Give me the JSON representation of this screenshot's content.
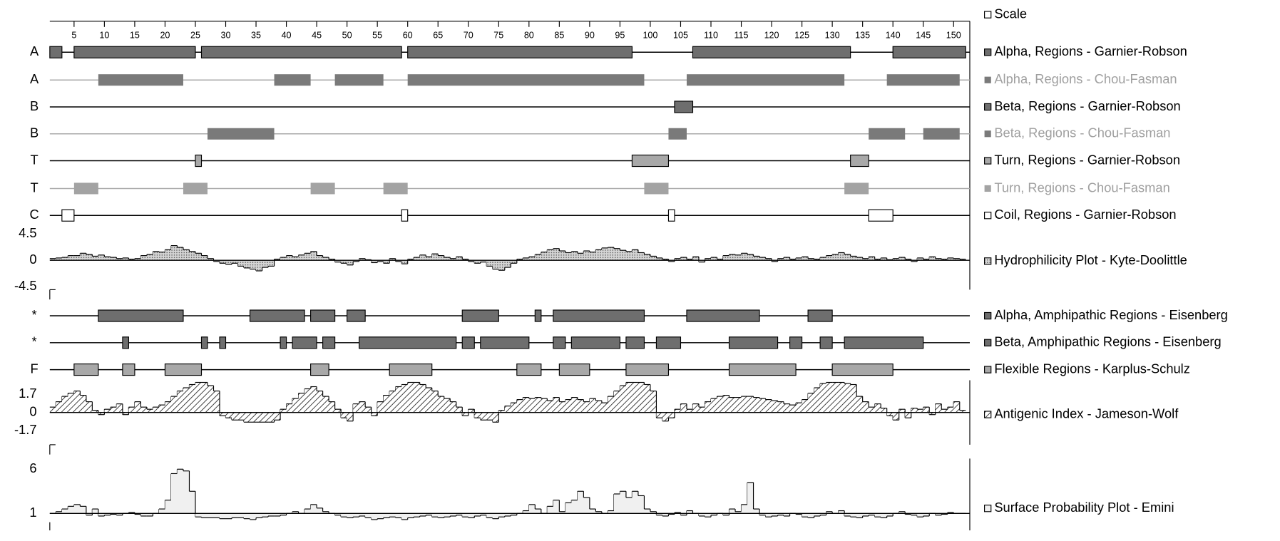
{
  "chart_data": {
    "type": "protein-profile",
    "scale_label": "Scale",
    "xlim": [
      1,
      152
    ],
    "xticks": [
      5,
      10,
      15,
      20,
      25,
      30,
      35,
      40,
      45,
      50,
      55,
      60,
      65,
      70,
      75,
      80,
      85,
      90,
      95,
      100,
      105,
      110,
      115,
      120,
      125,
      130,
      135,
      140,
      145,
      150
    ],
    "tracks": [
      {
        "symbol": "A",
        "name": "Alpha, Regions - Garnier-Robson",
        "color": "#6e6e6e",
        "border": "#000000",
        "line": "#000000",
        "text_color": "#000000",
        "regions": [
          [
            1,
            2
          ],
          [
            5,
            24
          ],
          [
            26,
            58
          ],
          [
            60,
            96
          ],
          [
            107,
            132
          ],
          [
            140,
            151
          ]
        ]
      },
      {
        "symbol": "A",
        "name": "Alpha, Regions - Chou-Fasman",
        "color": "#7a7a7a",
        "line": "#aaaaaa",
        "text_color": "#a0a0a0",
        "regions": [
          [
            9,
            22
          ],
          [
            38,
            43
          ],
          [
            48,
            55
          ],
          [
            60,
            98
          ],
          [
            106,
            131
          ],
          [
            139,
            150
          ]
        ]
      },
      {
        "symbol": "B",
        "name": "Beta, Regions - Garnier-Robson",
        "color": "#6e6e6e",
        "border": "#000000",
        "line": "#000000",
        "text_color": "#000000",
        "regions": [
          [
            104,
            106
          ]
        ]
      },
      {
        "symbol": "B",
        "name": "Beta, Regions - Chou-Fasman",
        "color": "#7a7a7a",
        "line": "#aaaaaa",
        "text_color": "#a0a0a0",
        "regions": [
          [
            27,
            37
          ],
          [
            103,
            105
          ],
          [
            136,
            141
          ],
          [
            145,
            150
          ]
        ]
      },
      {
        "symbol": "T",
        "name": "Turn, Regions - Garnier-Robson",
        "color": "#a8a8a8",
        "border": "#000000",
        "line": "#000000",
        "text_color": "#000000",
        "regions": [
          [
            25,
            25
          ],
          [
            97,
            102
          ],
          [
            133,
            135
          ]
        ]
      },
      {
        "symbol": "T",
        "name": "Turn, Regions - Chou-Fasman",
        "color": "#a3a3a3",
        "line": "#aaaaaa",
        "text_color": "#a0a0a0",
        "regions": [
          [
            5,
            8
          ],
          [
            23,
            26
          ],
          [
            44,
            47
          ],
          [
            56,
            59
          ],
          [
            99,
            102
          ],
          [
            132,
            135
          ]
        ]
      },
      {
        "symbol": "C",
        "name": "Coil, Regions - Garnier-Robson",
        "color": "#ffffff",
        "border": "#000000",
        "line": "#000000",
        "text_color": "#000000",
        "regions": [
          [
            3,
            4
          ],
          [
            59,
            59
          ],
          [
            103,
            103
          ],
          [
            136,
            139
          ]
        ]
      },
      {
        "symbol": "*",
        "name": "Alpha, Amphipathic Regions - Eisenberg",
        "color": "#6e6e6e",
        "border": "#000000",
        "line": "#000000",
        "text_color": "#000000",
        "regions": [
          [
            9,
            22
          ],
          [
            34,
            42
          ],
          [
            44,
            47
          ],
          [
            50,
            52
          ],
          [
            69,
            74
          ],
          [
            81,
            81
          ],
          [
            84,
            98
          ],
          [
            106,
            117
          ],
          [
            126,
            129
          ]
        ]
      },
      {
        "symbol": "*",
        "name": "Beta, Amphipathic Regions - Eisenberg",
        "color": "#6e6e6e",
        "border": "#000000",
        "line": "#000000",
        "text_color": "#000000",
        "regions": [
          [
            13,
            13
          ],
          [
            26,
            26
          ],
          [
            29,
            29
          ],
          [
            39,
            39
          ],
          [
            41,
            44
          ],
          [
            46,
            47
          ],
          [
            52,
            67
          ],
          [
            69,
            70
          ],
          [
            72,
            79
          ],
          [
            84,
            85
          ],
          [
            87,
            94
          ],
          [
            96,
            98
          ],
          [
            101,
            104
          ],
          [
            113,
            120
          ],
          [
            123,
            124
          ],
          [
            128,
            129
          ],
          [
            132,
            144
          ]
        ]
      },
      {
        "symbol": "F",
        "name": "Flexible Regions - Karplus-Schulz",
        "color": "#a8a8a8",
        "border": "#000000",
        "line": "#000000",
        "text_color": "#000000",
        "regions": [
          [
            5,
            8
          ],
          [
            13,
            14
          ],
          [
            20,
            25
          ],
          [
            44,
            46
          ],
          [
            57,
            63
          ],
          [
            78,
            81
          ],
          [
            85,
            89
          ],
          [
            96,
            102
          ],
          [
            113,
            123
          ],
          [
            130,
            139
          ]
        ]
      }
    ],
    "plots": [
      {
        "name": "Hydrophilicity Plot - Kyte-Doolittle",
        "fill": "dots",
        "baseline": 0,
        "ylim": [
          -5,
          5
        ],
        "yticks": [
          4.5,
          0,
          -4.5
        ],
        "values": [
          0.3,
          0.4,
          0.5,
          0.8,
          0.8,
          1.2,
          1.0,
          0.7,
          0.9,
          0.6,
          0.5,
          0.3,
          0.4,
          0.2,
          0.3,
          0.8,
          1.0,
          1.5,
          1.4,
          1.8,
          2.5,
          2.2,
          1.8,
          1.5,
          1.2,
          0.8,
          0.3,
          -0.2,
          -0.5,
          -0.7,
          -0.5,
          -1.0,
          -1.3,
          -1.5,
          -1.8,
          -1.2,
          -1.0,
          0.2,
          0.5,
          0.8,
          0.6,
          0.9,
          1.2,
          1.5,
          0.8,
          0.5,
          0.2,
          -0.3,
          -0.5,
          -0.8,
          -0.2,
          0.3,
          0.1,
          -0.4,
          -0.2,
          -0.5,
          0.3,
          -0.2,
          -0.6,
          0.2,
          0.5,
          0.9,
          0.6,
          1.1,
          0.8,
          0.5,
          0.3,
          0.6,
          0.2,
          -0.2,
          -0.5,
          -0.3,
          -1.0,
          -1.5,
          -1.7,
          -1.2,
          -0.5,
          0.2,
          0.4,
          0.6,
          1.0,
          1.4,
          1.8,
          2.0,
          1.6,
          1.3,
          1.5,
          1.2,
          1.6,
          1.4,
          1.8,
          2.1,
          2.2,
          2.0,
          1.7,
          1.5,
          1.8,
          1.3,
          1.0,
          0.7,
          0.4,
          0.2,
          -0.2,
          0.3,
          0.5,
          0.2,
          0.6,
          -0.3,
          0.3,
          0.5,
          0.2,
          0.8,
          1.0,
          0.9,
          1.2,
          1.0,
          0.7,
          0.5,
          0.3,
          -0.2,
          0.3,
          0.5,
          0.2,
          0.4,
          0.6,
          0.3,
          0.2,
          0.5,
          0.8,
          1.0,
          1.3,
          1.0,
          0.7,
          0.5,
          0.3,
          0.6,
          0.2,
          0.4,
          0.1,
          0.3,
          0.5,
          0.2,
          -0.2,
          0.4,
          0.2,
          0.6,
          0.3,
          0.2,
          0.4,
          0.3,
          0.2
        ]
      },
      {
        "name": "Antigenic Index - Jameson-Wolf",
        "fill": "hatch",
        "baseline": 0,
        "ylim": [
          -3,
          3
        ],
        "yticks": [
          1.7,
          0,
          -1.7
        ],
        "values": [
          0.5,
          1.0,
          1.5,
          1.8,
          2.0,
          1.6,
          1.0,
          0.2,
          -0.2,
          0.3,
          0.5,
          0.8,
          -0.2,
          0.5,
          1.0,
          0.5,
          0.3,
          0.5,
          0.7,
          1.0,
          1.5,
          2.0,
          2.3,
          2.6,
          2.8,
          2.8,
          2.5,
          2.0,
          -0.3,
          -0.5,
          -0.7,
          -0.7,
          -0.9,
          -0.9,
          -0.9,
          -0.9,
          -0.9,
          -0.7,
          0.3,
          0.8,
          1.3,
          1.8,
          2.2,
          2.4,
          2.0,
          1.5,
          1.0,
          0.3,
          -0.5,
          -0.8,
          0.8,
          1.0,
          0.5,
          -0.3,
          1.0,
          1.6,
          2.0,
          2.4,
          2.6,
          2.8,
          2.8,
          2.6,
          2.3,
          2.0,
          1.5,
          1.3,
          1.0,
          0.5,
          -0.3,
          0.3,
          -0.5,
          -0.7,
          -0.7,
          -0.9,
          0.2,
          0.6,
          0.9,
          1.2,
          1.4,
          1.3,
          1.4,
          1.3,
          1.1,
          1.4,
          1.0,
          1.2,
          1.4,
          1.2,
          1.0,
          1.3,
          1.1,
          0.9,
          1.5,
          2.0,
          2.5,
          2.8,
          2.8,
          2.8,
          2.6,
          2.0,
          -0.5,
          -0.8,
          -0.5,
          0.3,
          0.8,
          0.3,
          0.8,
          0.5,
          1.0,
          1.3,
          1.5,
          1.6,
          1.4,
          1.4,
          1.5,
          1.5,
          1.4,
          1.3,
          1.2,
          1.1,
          1.0,
          0.8,
          0.7,
          0.9,
          1.2,
          1.8,
          2.3,
          2.7,
          2.8,
          2.8,
          2.8,
          2.7,
          2.6,
          1.5,
          1.0,
          0.5,
          0.8,
          0.4,
          -0.3,
          -0.7,
          0.3,
          -0.5,
          0.4,
          0.3,
          0.5,
          -0.2,
          0.8,
          0.3,
          0.5,
          1.0,
          0.2
        ]
      },
      {
        "name": "Surface Probability Plot - Emini",
        "fill": "solid",
        "baseline": 1,
        "ylim": [
          0,
          7.2
        ],
        "yticks": [
          6,
          1
        ],
        "values": [
          1.0,
          1.2,
          1.5,
          1.8,
          2.0,
          1.8,
          0.8,
          1.5,
          0.7,
          0.8,
          0.9,
          0.8,
          1.0,
          1.1,
          0.9,
          0.7,
          0.7,
          1.0,
          1.5,
          2.5,
          5.5,
          6.0,
          5.8,
          3.5,
          0.6,
          0.5,
          0.5,
          0.5,
          0.4,
          0.4,
          0.5,
          0.5,
          0.4,
          0.3,
          0.5,
          0.6,
          0.7,
          0.7,
          0.8,
          1.0,
          1.2,
          1.0,
          1.5,
          2.0,
          1.6,
          1.2,
          1.0,
          0.8,
          0.6,
          0.5,
          0.6,
          0.7,
          0.5,
          0.3,
          0.4,
          0.5,
          0.6,
          0.5,
          0.3,
          0.5,
          0.6,
          0.7,
          0.8,
          0.6,
          0.5,
          0.6,
          0.7,
          0.8,
          0.6,
          0.5,
          0.7,
          0.8,
          0.5,
          0.4,
          0.6,
          0.7,
          0.8,
          1.0,
          1.3,
          2.0,
          1.5,
          1.0,
          1.8,
          2.5,
          1.2,
          2.2,
          2.5,
          3.5,
          2.8,
          1.5,
          1.2,
          1.0,
          1.3,
          3.2,
          3.5,
          2.8,
          3.5,
          3.0,
          1.5,
          1.2,
          0.8,
          0.7,
          0.9,
          1.1,
          0.8,
          1.3,
          1.0,
          0.7,
          0.6,
          0.8,
          1.0,
          0.8,
          1.5,
          1.2,
          2.0,
          4.5,
          1.5,
          0.8,
          0.6,
          0.7,
          0.8,
          0.7,
          1.0,
          0.9,
          0.6,
          0.5,
          0.7,
          0.8,
          1.2,
          1.0,
          1.3,
          0.7,
          0.6,
          0.5,
          0.7,
          0.8,
          0.6,
          0.5,
          0.7,
          1.0,
          1.2,
          0.9,
          0.8,
          0.6,
          0.7,
          1.0,
          0.8,
          0.9,
          1.1,
          1.0,
          1.0
        ]
      }
    ]
  }
}
